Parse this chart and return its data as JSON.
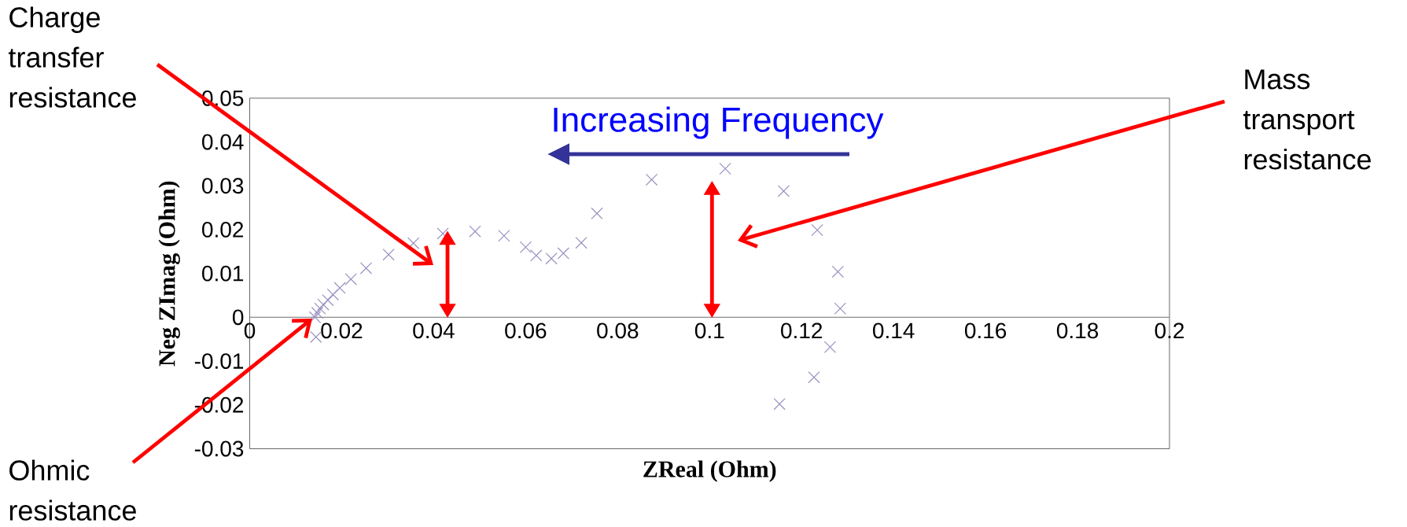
{
  "chart_data": {
    "type": "scatter",
    "xlabel": "ZReal (Ohm)",
    "ylabel": "Neg ZImag (Ohm)",
    "x": [
      0.0144,
      0.0142,
      0.0147,
      0.0153,
      0.016,
      0.017,
      0.0181,
      0.0196,
      0.022,
      0.0253,
      0.0302,
      0.0356,
      0.042,
      0.049,
      0.0553,
      0.06,
      0.0623,
      0.0656,
      0.0682,
      0.0721,
      0.0755,
      0.0874,
      0.1034,
      0.1161,
      0.1234,
      0.1279,
      0.1284,
      0.1262,
      0.1227,
      0.1152
    ],
    "values": [
      -0.0045,
      0.0,
      0.001,
      0.002,
      0.0029,
      0.0039,
      0.0052,
      0.0067,
      0.0087,
      0.0112,
      0.0143,
      0.0169,
      0.0191,
      0.0196,
      0.0186,
      0.016,
      0.0141,
      0.0134,
      0.0146,
      0.017,
      0.0237,
      0.0314,
      0.0339,
      0.0288,
      0.0199,
      0.0104,
      0.002,
      -0.0068,
      -0.0137,
      -0.0198
    ],
    "color": "#9a90c0",
    "marker": "cross",
    "xlim": [
      0,
      0.2
    ],
    "ylim": [
      -0.03,
      0.05
    ],
    "xticks": [
      0,
      0.02,
      0.04,
      0.06,
      0.08,
      0.1,
      0.12,
      0.14,
      0.16,
      0.18,
      0.2
    ],
    "yticks": [
      -0.03,
      -0.02,
      -0.01,
      0,
      0.01,
      0.02,
      0.03,
      0.04,
      0.05
    ],
    "annotations": [
      "Charge transfer resistance",
      "Mass transport resistance",
      "Ohmic resistance",
      "Increasing Frequency"
    ]
  }
}
